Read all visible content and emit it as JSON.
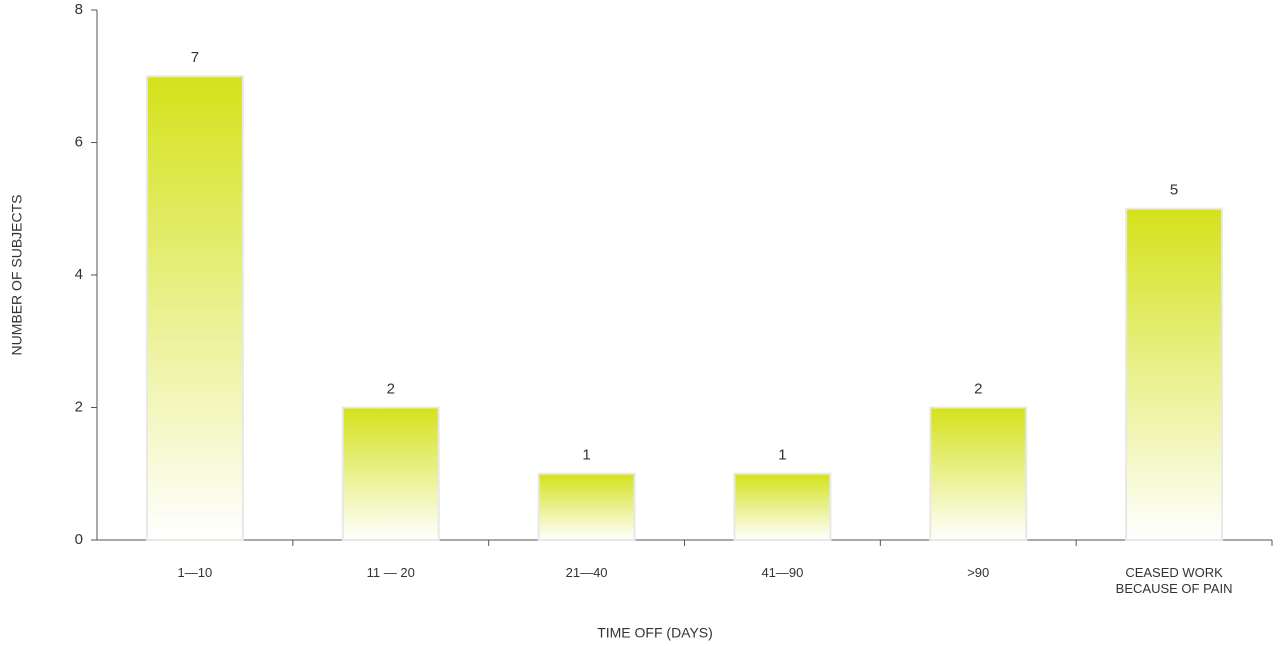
{
  "chart_data": {
    "type": "bar",
    "x_label": "TIME OFF (DAYS)",
    "y_label": "NUMBER OF SUBJECTS",
    "categories": [
      "1—10",
      "11 — 20",
      "21—40",
      "41—90",
      ">90",
      "CEASED WORK BECAUSE OF PAIN"
    ],
    "values": [
      7,
      2,
      1,
      1,
      2,
      5
    ],
    "color": "#d4e21a",
    "ylim": [
      0,
      8
    ],
    "yticks": [
      0,
      2,
      4,
      6,
      8
    ],
    "grid": false
  }
}
